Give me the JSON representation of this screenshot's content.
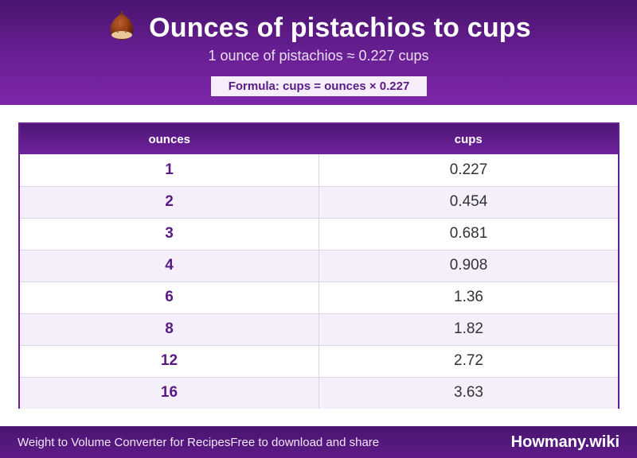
{
  "header": {
    "title": "Ounces of pistachios to cups",
    "subtitle": "1 ounce of pistachios ≈ 0.227 cups",
    "formula": "Formula: cups = ounces × 0.227",
    "icon": "pistachio-nut-icon"
  },
  "table": {
    "columns": [
      "ounces",
      "cups"
    ],
    "rows": [
      {
        "ounces": "1",
        "cups": "0.227"
      },
      {
        "ounces": "2",
        "cups": "0.454"
      },
      {
        "ounces": "3",
        "cups": "0.681"
      },
      {
        "ounces": "4",
        "cups": "0.908"
      },
      {
        "ounces": "6",
        "cups": "1.36"
      },
      {
        "ounces": "8",
        "cups": "1.82"
      },
      {
        "ounces": "12",
        "cups": "2.72"
      },
      {
        "ounces": "16",
        "cups": "3.63"
      }
    ]
  },
  "footer": {
    "left_text": "Weight to Volume Converter for RecipesFree to download and share",
    "brand": "Howmany.wiki"
  },
  "colors": {
    "accent": "#6a2095",
    "header_dark": "#4a1470",
    "row_alt": "#f4effa"
  }
}
